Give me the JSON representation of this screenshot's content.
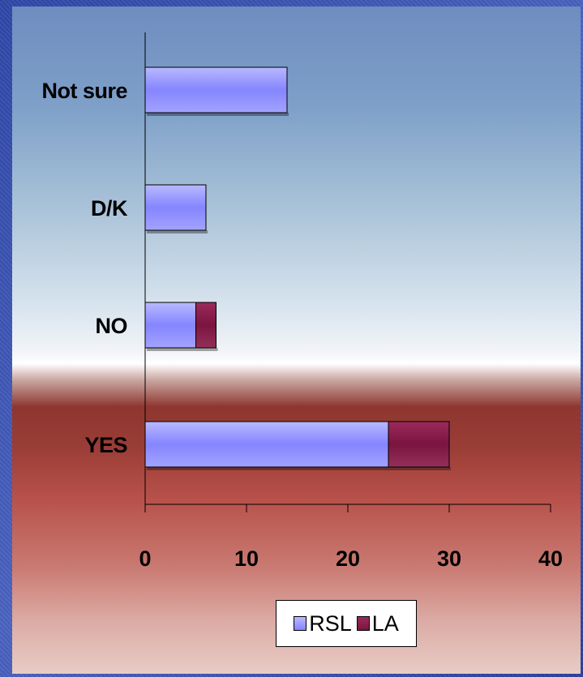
{
  "chart_data": {
    "type": "bar",
    "orientation": "horizontal",
    "stacked": true,
    "categories": [
      "Not sure",
      "D/K",
      "NO",
      "YES"
    ],
    "series": [
      {
        "name": "RSL",
        "values": [
          14,
          6,
          5,
          24
        ],
        "color": "#8888ff"
      },
      {
        "name": "LA",
        "values": [
          0,
          0,
          2,
          6
        ],
        "color": "#8a1c4a"
      }
    ],
    "xlim": [
      0,
      40
    ],
    "xticks": [
      0,
      10,
      20,
      30,
      40
    ],
    "grid": false,
    "legend_position": "bottom"
  }
}
